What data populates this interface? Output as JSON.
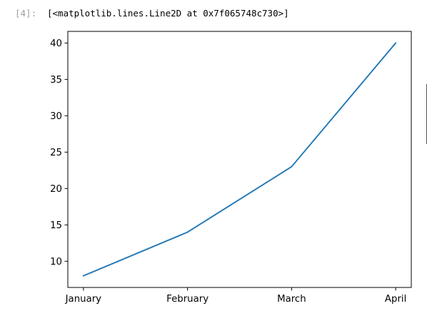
{
  "cell": {
    "prompt": "[4]:",
    "output": "[<matplotlib.lines.Line2D at 0x7f065748c730>]"
  },
  "colors": {
    "line": "#1f77b4",
    "axes": "#000000",
    "prompt": "#9e9e9e"
  },
  "chart_data": {
    "type": "line",
    "title": "",
    "xlabel": "",
    "ylabel": "",
    "categories": [
      "January",
      "February",
      "March",
      "April"
    ],
    "series": [
      {
        "values": [
          8,
          14,
          23,
          40
        ]
      }
    ],
    "yticks": [
      10,
      15,
      20,
      25,
      30,
      35,
      40
    ],
    "ylim": [
      6.4,
      41.6
    ],
    "grid": false,
    "legend": "none"
  }
}
